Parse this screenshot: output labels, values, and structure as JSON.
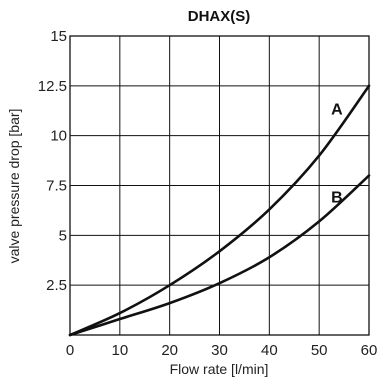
{
  "chart_data": {
    "type": "line",
    "title": "DHAX(S)",
    "xlabel": "Flow rate [l/min]",
    "ylabel": "valve pressure drop [bar]",
    "xlim": [
      0,
      60
    ],
    "ylim": [
      0,
      15
    ],
    "x_ticks": [
      0,
      10,
      20,
      30,
      40,
      50,
      60
    ],
    "x_tick_labels": [
      "0",
      "10",
      "20",
      "30",
      "40",
      "50",
      "60"
    ],
    "y_ticks": [
      0,
      2.5,
      5,
      7.5,
      10,
      12.5,
      15
    ],
    "y_tick_labels": [
      "",
      "2.5",
      "5",
      "7.5",
      "10",
      "12.5",
      "15"
    ],
    "grid": true,
    "series": [
      {
        "name": "A",
        "x": [
          0,
          10,
          20,
          30,
          40,
          50,
          60
        ],
        "y": [
          0,
          1.1,
          2.5,
          4.2,
          6.3,
          9.0,
          12.5
        ]
      },
      {
        "name": "B",
        "x": [
          0,
          10,
          20,
          30,
          40,
          50,
          60
        ],
        "y": [
          0,
          0.8,
          1.6,
          2.6,
          3.9,
          5.7,
          8.0
        ]
      }
    ]
  }
}
